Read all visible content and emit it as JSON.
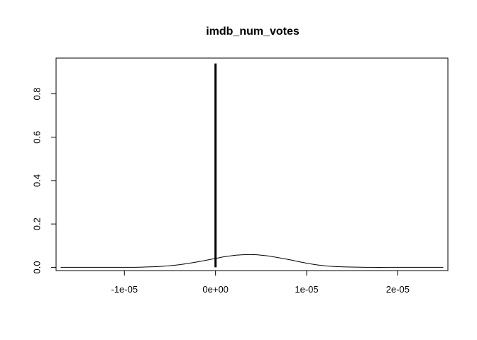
{
  "chart_data": {
    "type": "line",
    "title": "imdb_num_votes",
    "xlabel": "",
    "ylabel": "",
    "xlim": [
      -1.75e-05,
      2.55e-05
    ],
    "ylim": [
      -0.015,
      0.965
    ],
    "x_ticks": [
      {
        "value": -1e-05,
        "label": "-1e-05"
      },
      {
        "value": 0,
        "label": "0e+00"
      },
      {
        "value": 1e-05,
        "label": "1e-05"
      },
      {
        "value": 2e-05,
        "label": "2e-05"
      }
    ],
    "y_ticks": [
      {
        "value": 0.0,
        "label": "0.0"
      },
      {
        "value": 0.2,
        "label": "0.2"
      },
      {
        "value": 0.4,
        "label": "0.4"
      },
      {
        "value": 0.6,
        "label": "0.6"
      },
      {
        "value": 0.8,
        "label": "0.8"
      }
    ],
    "grid": false,
    "series": [
      {
        "kind": "density-curve",
        "x": [
          -1.7e-05,
          -1.3e-05,
          -1e-05,
          -8e-06,
          -6e-06,
          -4e-06,
          -2e-06,
          0,
          1e-06,
          2e-06,
          3e-06,
          3.6e-06,
          4.5e-06,
          6e-06,
          8e-06,
          1e-05,
          1.2e-05,
          1.4e-05,
          1.7e-05,
          2e-05,
          2.3e-05,
          2.5e-05
        ],
        "y": [
          0.0,
          0.0,
          0.0,
          0.001,
          0.004,
          0.012,
          0.025,
          0.041,
          0.049,
          0.055,
          0.058,
          0.059,
          0.058,
          0.051,
          0.036,
          0.019,
          0.007,
          0.002,
          0.0,
          0.0,
          0.0,
          0.0
        ]
      },
      {
        "kind": "vertical-line",
        "x": [
          0,
          0
        ],
        "y": [
          0.0,
          0.94
        ]
      }
    ],
    "colors": {
      "curve": "#000000",
      "spike": "#000000",
      "axis": "#000000"
    }
  }
}
